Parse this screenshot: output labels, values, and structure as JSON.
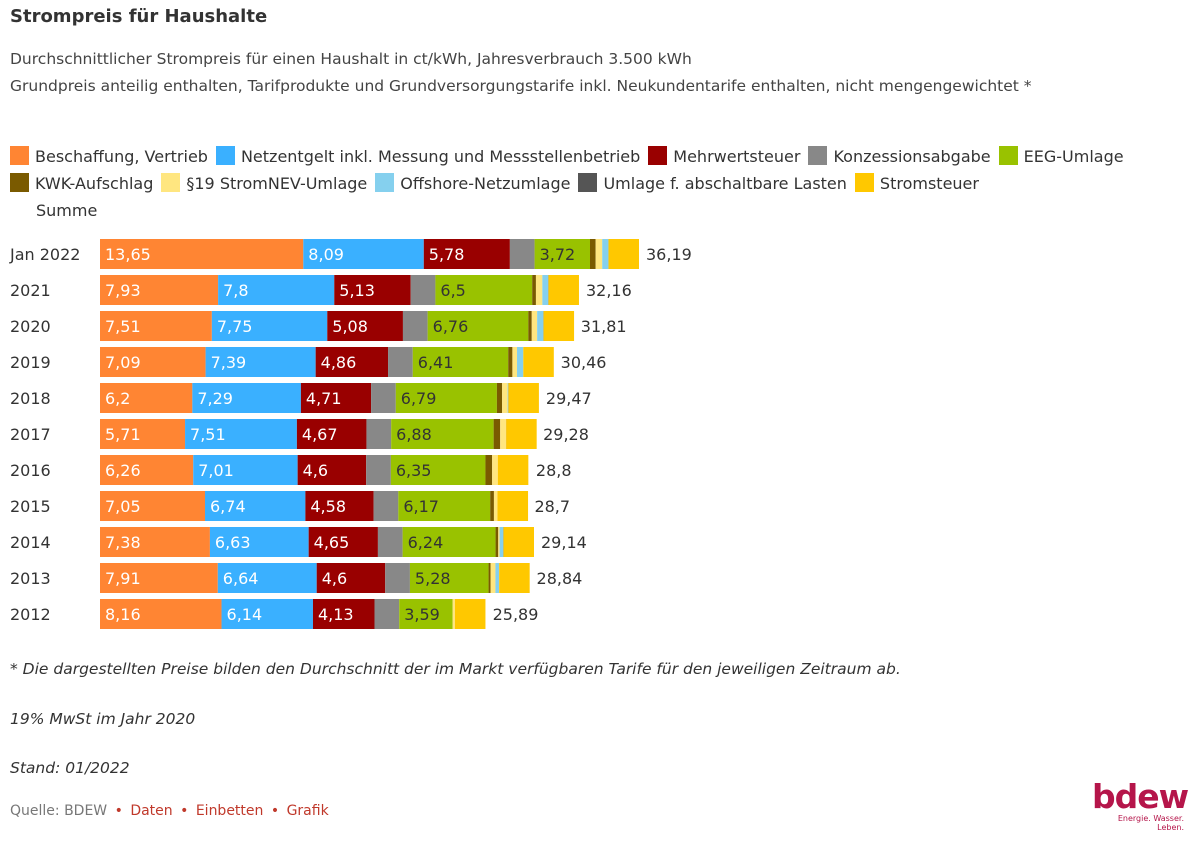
{
  "header": {
    "title": "Strompreis für Haushalte",
    "subtitle1": "Durchschnittlicher Strompreis für einen Haushalt in ct/kWh, Jahresverbrauch 3.500 kWh",
    "subtitle2": "Grundpreis anteilig enthalten, Tarifprodukte und Grundversorgungstarife inkl. Neukundentarife enthalten, nicht mengengewichtet *"
  },
  "legend": {
    "items": [
      {
        "label": "Beschaffung, Vertrieb",
        "color": "#ff8533"
      },
      {
        "label": "Netzentgelt inkl. Messung und Messstellenbetrieb",
        "color": "#3ab0ff"
      },
      {
        "label": "Mehrwertsteuer",
        "color": "#990000"
      },
      {
        "label": "Konzessionsabgabe",
        "color": "#888888"
      },
      {
        "label": "EEG-Umlage",
        "color": "#99c200"
      },
      {
        "label": "KWK-Aufschlag",
        "color": "#7a5a00"
      },
      {
        "label": "§19 StromNEV-Umlage",
        "color": "#ffe680"
      },
      {
        "label": "Offshore-Netzumlage",
        "color": "#85d0ee"
      },
      {
        "label": "Umlage f. abschaltbare Lasten",
        "color": "#555555"
      },
      {
        "label": "Stromsteuer",
        "color": "#ffc800"
      }
    ],
    "summe": "Summe"
  },
  "chart_data": {
    "type": "bar",
    "orientation": "horizontal",
    "stacked": true,
    "categories": [
      "Jan 2022",
      "2021",
      "2020",
      "2019",
      "2018",
      "2017",
      "2016",
      "2015",
      "2014",
      "2013",
      "2012"
    ],
    "series": [
      {
        "name": "Beschaffung, Vertrieb",
        "values": [
          13.65,
          7.93,
          7.51,
          7.09,
          6.2,
          5.71,
          6.26,
          7.05,
          7.38,
          7.91,
          8.16
        ],
        "labels": [
          "13,65",
          "7,93",
          "7,51",
          "7,09",
          "6,2",
          "5,71",
          "6,26",
          "7,05",
          "7,38",
          "7,91",
          "8,16"
        ]
      },
      {
        "name": "Netzentgelt inkl. Messung und Messstellenbetrieb",
        "values": [
          8.09,
          7.8,
          7.75,
          7.39,
          7.29,
          7.51,
          7.01,
          6.74,
          6.63,
          6.64,
          6.14
        ],
        "labels": [
          "8,09",
          "7,8",
          "7,75",
          "7,39",
          "7,29",
          "7,51",
          "7,01",
          "6,74",
          "6,63",
          "6,64",
          "6,14"
        ]
      },
      {
        "name": "Mehrwertsteuer",
        "values": [
          5.78,
          5.13,
          5.08,
          4.86,
          4.71,
          4.67,
          4.6,
          4.58,
          4.65,
          4.6,
          4.13
        ],
        "labels": [
          "5,78",
          "5,13",
          "5,08",
          "4,86",
          "4,71",
          "4,67",
          "4,6",
          "4,58",
          "4,65",
          "4,6",
          "4,13"
        ]
      },
      {
        "name": "Konzessionsabgabe",
        "values": [
          1.66,
          1.66,
          1.66,
          1.66,
          1.66,
          1.66,
          1.66,
          1.66,
          1.66,
          1.66,
          1.66
        ],
        "labels": [
          "",
          "",
          "",
          "",
          "",
          "",
          "",
          "",
          "",
          "",
          ""
        ]
      },
      {
        "name": "EEG-Umlage",
        "values": [
          3.72,
          6.5,
          6.76,
          6.41,
          6.79,
          6.88,
          6.35,
          6.17,
          6.24,
          5.28,
          3.59
        ],
        "labels": [
          "3,72",
          "6,5",
          "6,76",
          "6,41",
          "6,79",
          "6,88",
          "6,35",
          "6,17",
          "6,24",
          "5,28",
          "3,59"
        ]
      },
      {
        "name": "KWK-Aufschlag",
        "values": [
          0.38,
          0.25,
          0.23,
          0.28,
          0.35,
          0.44,
          0.45,
          0.25,
          0.18,
          0.13,
          0.0
        ],
        "labels": [
          "",
          "",
          "",
          "",
          "",
          "",
          "",
          "",
          "",
          "",
          ""
        ]
      },
      {
        "name": "§19 StromNEV-Umlage",
        "values": [
          0.44,
          0.43,
          0.36,
          0.31,
          0.37,
          0.39,
          0.38,
          0.24,
          0.09,
          0.33,
          0.15
        ],
        "labels": [
          "",
          "",
          "",
          "",
          "",
          "",
          "",
          "",
          "",
          "",
          ""
        ]
      },
      {
        "name": "Offshore-Netzumlage",
        "values": [
          0.42,
          0.4,
          0.42,
          0.42,
          0.04,
          0.0,
          0.0,
          0.0,
          0.25,
          0.25,
          0.0
        ],
        "labels": [
          "",
          "",
          "",
          "",
          "",
          "",
          "",
          "",
          "",
          "",
          ""
        ]
      },
      {
        "name": "Umlage f. abschaltbare Lasten",
        "values": [
          0.0,
          0.01,
          0.01,
          0.0,
          0.01,
          0.01,
          0.0,
          0.0,
          0.01,
          0.0,
          0.0
        ],
        "labels": [
          "",
          "",
          "",
          "",
          "",
          "",
          "",
          "",
          "",
          "",
          ""
        ]
      },
      {
        "name": "Stromsteuer",
        "values": [
          2.05,
          2.05,
          2.05,
          2.05,
          2.05,
          2.05,
          2.05,
          2.05,
          2.05,
          2.05,
          2.05
        ],
        "labels": [
          "",
          "",
          "",
          "",
          "",
          "",
          "",
          "",
          "",
          "",
          ""
        ]
      }
    ],
    "totals": [
      "36,19",
      "32,16",
      "31,81",
      "30,46",
      "29,47",
      "29,28",
      "28,8",
      "28,7",
      "29,14",
      "28,84",
      "25,89"
    ],
    "total_values": [
      36.19,
      32.16,
      31.81,
      30.46,
      29.47,
      29.28,
      28.8,
      28.7,
      29.14,
      28.84,
      25.89
    ],
    "xlim": [
      0,
      36.19
    ],
    "grid": false
  },
  "notes": {
    "n1": "* Die dargestellten Preise bilden den Durchschnitt der im Markt verfügbaren Tarife für den jeweiligen Zeitraum ab.",
    "n2": "19% MwSt im Jahr 2020",
    "n3": "Stand: 01/2022"
  },
  "source": {
    "prefix": "Quelle: BDEW",
    "links": [
      "Daten",
      "Einbetten",
      "Grafik"
    ]
  },
  "logo": {
    "wordmark": "bdew",
    "tagline": "Energie. Wasser. Leben."
  }
}
